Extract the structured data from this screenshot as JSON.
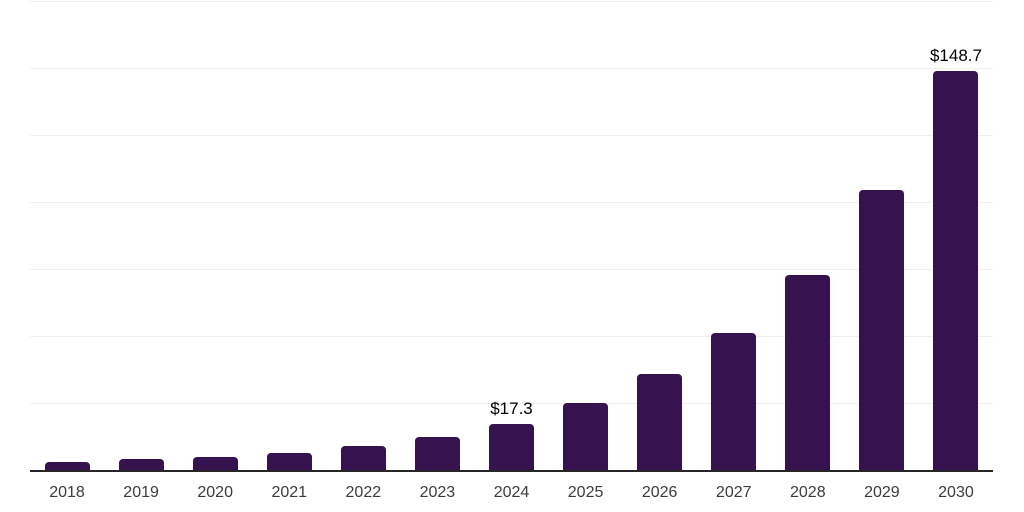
{
  "chart_data": {
    "type": "bar",
    "title": "",
    "xlabel": "",
    "ylabel": "",
    "categories": [
      "2018",
      "2019",
      "2020",
      "2021",
      "2022",
      "2023",
      "2024",
      "2025",
      "2026",
      "2027",
      "2028",
      "2029",
      "2030"
    ],
    "values": [
      3.0,
      4.1,
      4.8,
      6.3,
      8.9,
      12.2,
      17.3,
      25.0,
      35.8,
      51.0,
      72.6,
      104.3,
      148.7
    ],
    "point_labels": [
      "",
      "",
      "",
      "",
      "",
      "",
      "$17.3",
      "",
      "",
      "",
      "",
      "",
      "$148.7"
    ],
    "ylim": [
      0,
      175
    ],
    "y_gridline_step": 25,
    "grid": true,
    "legend": false,
    "colors": {
      "bar": "#36124e",
      "gridline": "#efefef",
      "axis": "#262626",
      "tick_label": "#3b3b3b",
      "data_label": "#000000",
      "background": "#ffffff"
    }
  }
}
